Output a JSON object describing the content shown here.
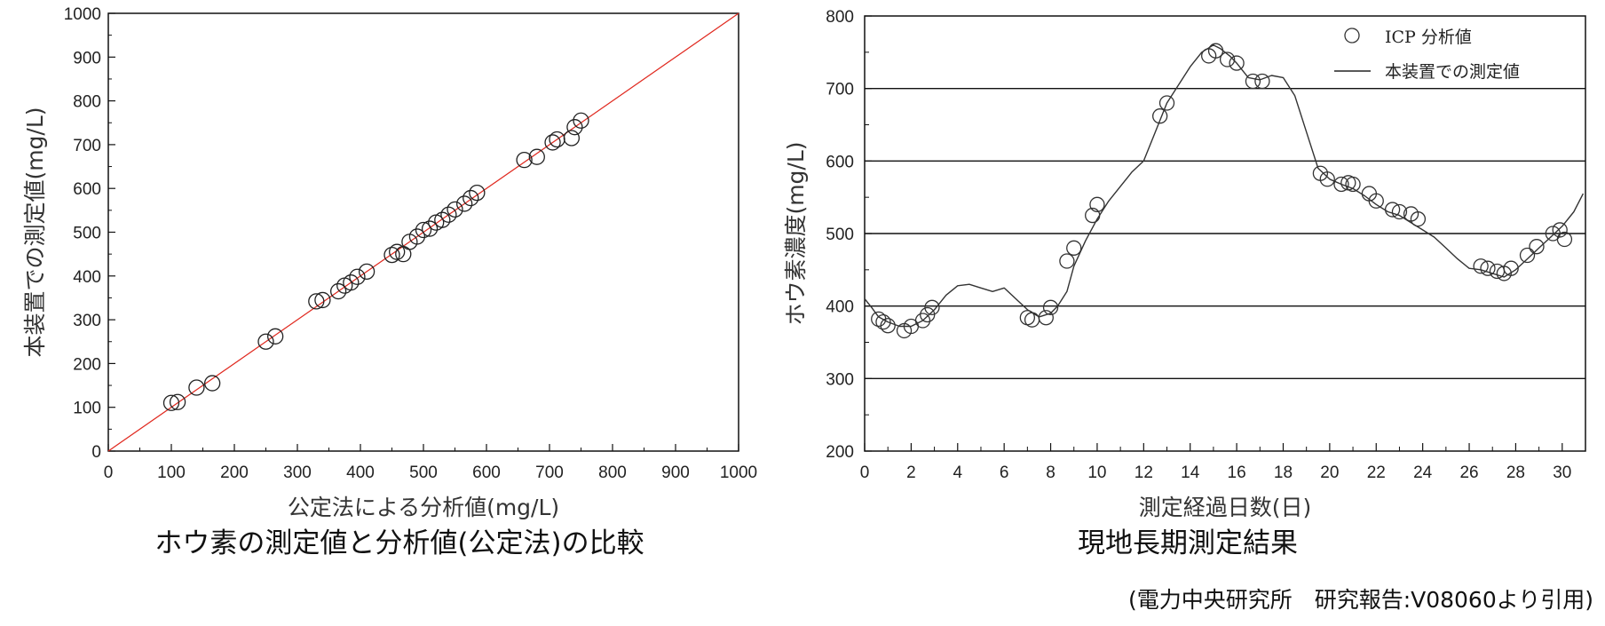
{
  "chart_data": [
    {
      "type": "scatter",
      "title": "ホウ素の測定値と分析値(公定法)の比較",
      "xlabel": "公定法による分析値(mg/L)",
      "ylabel": "本装置での測定値(mg/L)",
      "xlim": [
        0,
        1000
      ],
      "ylim": [
        0,
        1000
      ],
      "xticks": [
        "0",
        "100",
        "200",
        "300",
        "400",
        "500",
        "600",
        "700",
        "800",
        "900",
        "1000"
      ],
      "yticks": [
        "0",
        "100",
        "200",
        "300",
        "400",
        "500",
        "600",
        "700",
        "800",
        "900",
        "1000"
      ],
      "grid": false,
      "line_color": "#e0281e",
      "reference_line": {
        "x": [
          0,
          1000
        ],
        "y": [
          0,
          1000
        ]
      },
      "points": [
        [
          100,
          110
        ],
        [
          110,
          112
        ],
        [
          140,
          145
        ],
        [
          165,
          155
        ],
        [
          250,
          250
        ],
        [
          265,
          262
        ],
        [
          330,
          342
        ],
        [
          340,
          345
        ],
        [
          365,
          365
        ],
        [
          375,
          378
        ],
        [
          385,
          385
        ],
        [
          395,
          398
        ],
        [
          410,
          410
        ],
        [
          450,
          448
        ],
        [
          458,
          455
        ],
        [
          468,
          450
        ],
        [
          478,
          478
        ],
        [
          490,
          490
        ],
        [
          500,
          505
        ],
        [
          510,
          508
        ],
        [
          520,
          522
        ],
        [
          530,
          528
        ],
        [
          540,
          540
        ],
        [
          550,
          552
        ],
        [
          565,
          565
        ],
        [
          575,
          578
        ],
        [
          585,
          590
        ],
        [
          660,
          665
        ],
        [
          680,
          672
        ],
        [
          705,
          705
        ],
        [
          712,
          712
        ],
        [
          735,
          715
        ],
        [
          740,
          740
        ],
        [
          750,
          755
        ]
      ]
    },
    {
      "type": "line",
      "title": "現地長期測定結果",
      "xlabel": "測定経過日数(日)",
      "ylabel": "ホウ素濃度(mg/L)",
      "xlim": [
        0,
        31
      ],
      "ylim": [
        200,
        800
      ],
      "xticks": [
        "0",
        "2",
        "4",
        "6",
        "8",
        "10",
        "12",
        "14",
        "16",
        "18",
        "20",
        "22",
        "24",
        "26",
        "28",
        "30"
      ],
      "yticks": [
        "200",
        "300",
        "400",
        "500",
        "600",
        "700",
        "800"
      ],
      "grid": "horizontal",
      "legend_position": "top-right",
      "series": [
        {
          "name": "本装置での測定値",
          "style": "line",
          "x": [
            0,
            0.3,
            0.6,
            1.0,
            1.5,
            2.0,
            2.5,
            3.0,
            3.5,
            4.0,
            4.5,
            5.0,
            5.5,
            6.0,
            6.5,
            7.0,
            7.5,
            8.0,
            8.3,
            8.7,
            9.0,
            9.5,
            10.0,
            10.5,
            11.0,
            11.5,
            12.0,
            12.5,
            13.0,
            13.5,
            14.0,
            14.5,
            15.0,
            15.3,
            15.7,
            16.0,
            16.5,
            17.0,
            17.5,
            18.0,
            18.5,
            19.0,
            19.5,
            20.0,
            20.5,
            21.0,
            21.5,
            22.0,
            22.5,
            23.0,
            23.5,
            24.0,
            24.5,
            25.0,
            25.5,
            26.0,
            26.5,
            27.0,
            27.5,
            28.0,
            28.5,
            29.0,
            29.5,
            30.0,
            30.5,
            30.9
          ],
          "y": [
            410,
            398,
            385,
            378,
            372,
            372,
            380,
            395,
            415,
            428,
            430,
            425,
            420,
            425,
            410,
            395,
            385,
            390,
            400,
            420,
            455,
            490,
            520,
            545,
            565,
            585,
            600,
            640,
            680,
            705,
            730,
            750,
            760,
            755,
            745,
            735,
            715,
            712,
            718,
            715,
            690,
            640,
            590,
            575,
            568,
            562,
            552,
            540,
            530,
            525,
            515,
            505,
            495,
            480,
            465,
            452,
            450,
            445,
            440,
            450,
            465,
            480,
            495,
            510,
            530,
            555
          ]
        },
        {
          "name": "ICP 分析値",
          "style": "marker",
          "x": [
            0.6,
            0.8,
            1.0,
            1.7,
            2.0,
            2.5,
            2.7,
            2.9,
            7.0,
            7.2,
            7.8,
            8.0,
            8.7,
            9.0,
            9.8,
            10.0,
            12.7,
            13.0,
            14.8,
            15.1,
            15.6,
            16.0,
            16.7,
            17.1,
            19.6,
            19.9,
            20.5,
            20.8,
            21.0,
            21.7,
            22.0,
            22.7,
            23.0,
            23.5,
            23.8,
            26.5,
            26.8,
            27.2,
            27.5,
            27.8,
            28.5,
            28.9,
            29.6,
            29.9,
            30.1
          ],
          "y": [
            382,
            378,
            373,
            366,
            372,
            380,
            388,
            398,
            384,
            381,
            384,
            398,
            462,
            480,
            525,
            540,
            662,
            680,
            745,
            752,
            740,
            735,
            710,
            710,
            583,
            575,
            568,
            570,
            568,
            555,
            545,
            533,
            530,
            527,
            520,
            455,
            452,
            448,
            445,
            452,
            470,
            482,
            500,
            505,
            492
          ]
        }
      ]
    }
  ],
  "source_note": "(電力中央研究所　研究報告:V08060より引用)"
}
